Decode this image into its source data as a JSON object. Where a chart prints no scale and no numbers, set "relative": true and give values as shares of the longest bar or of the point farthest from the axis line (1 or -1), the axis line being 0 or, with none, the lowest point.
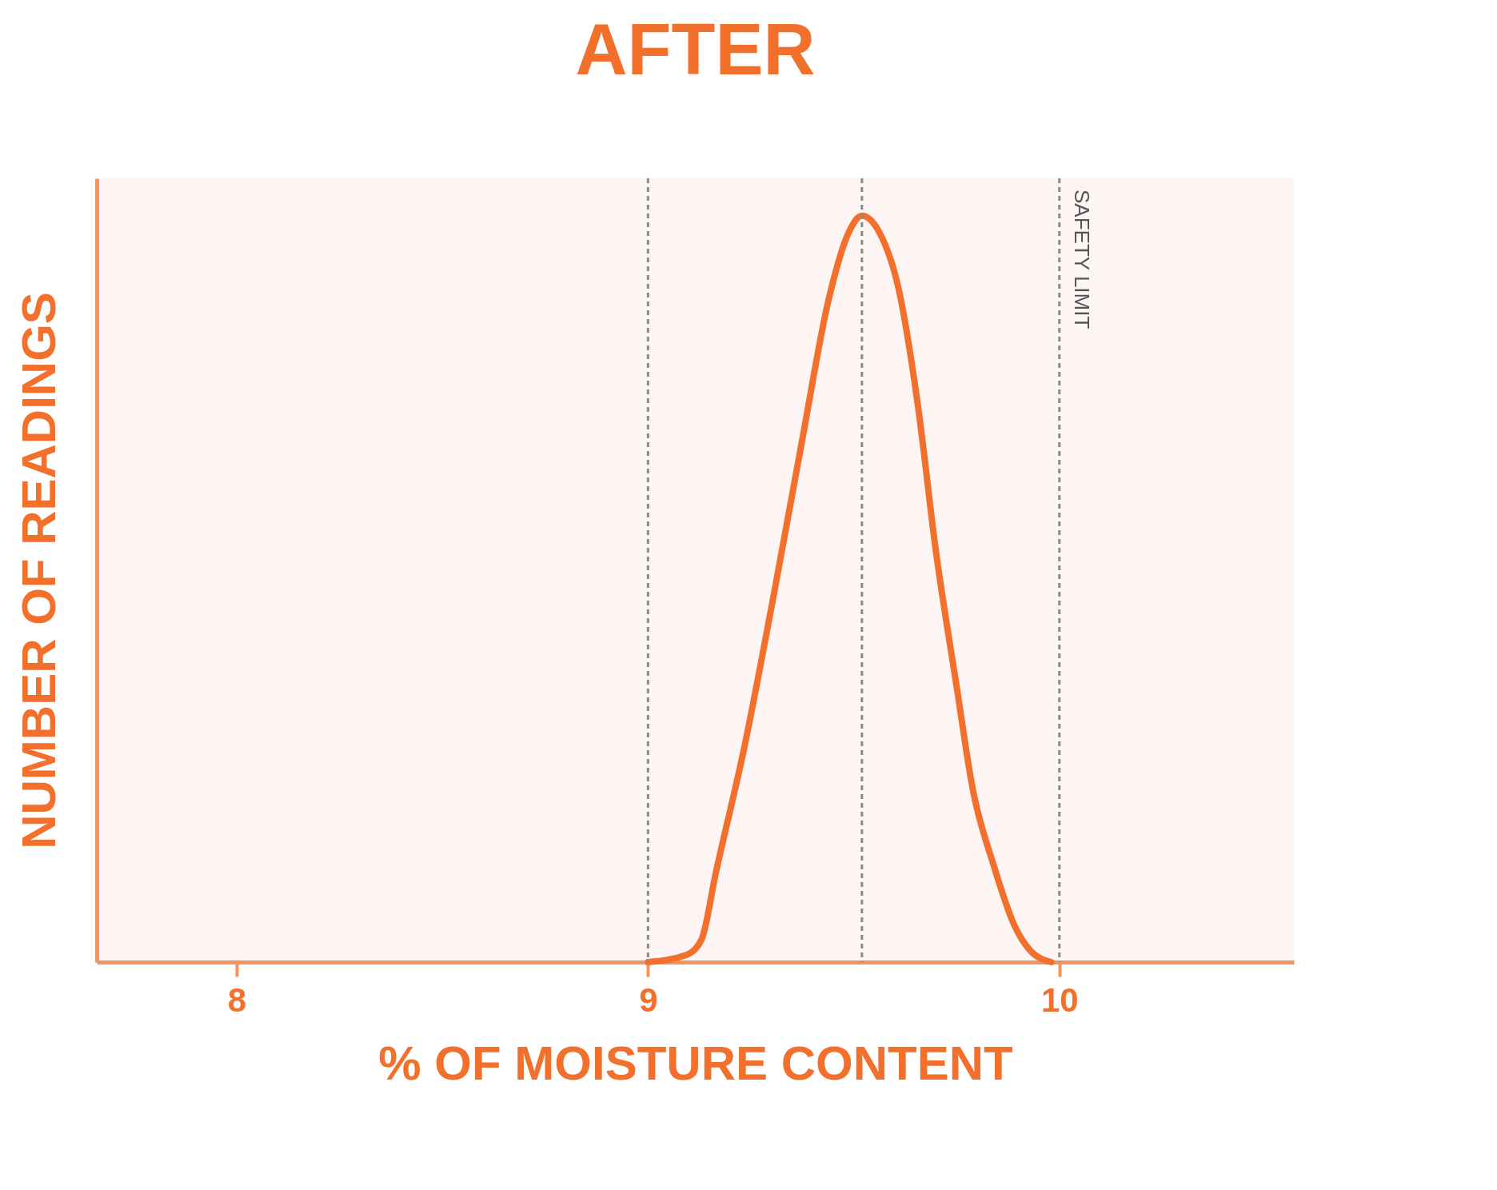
{
  "chart_data": {
    "type": "line",
    "title": "AFTER",
    "xlabel": "% OF MOISTURE CONTENT",
    "ylabel": "NUMBER OF READINGS",
    "relative": true,
    "xlim": [
      7.66,
      10.57
    ],
    "xticks": [
      8,
      9,
      10
    ],
    "grid": false,
    "marker": "none",
    "line_style": "solid",
    "series": [
      {
        "color": "#f36f2c",
        "x": [
          9.0,
          9.095,
          9.13,
          9.165,
          9.235,
          9.305,
          9.375,
          9.44,
          9.49,
          9.52,
          9.56,
          9.61,
          9.655,
          9.7,
          9.75,
          9.79,
          9.84,
          9.89,
          9.93,
          9.98
        ],
        "values": [
          0,
          0.01,
          0.03,
          0.12,
          0.29,
          0.49,
          0.7,
          0.89,
          0.98,
          1,
          0.98,
          0.9,
          0.75,
          0.55,
          0.37,
          0.23,
          0.13,
          0.05,
          0.015,
          0
        ]
      }
    ],
    "ref_lines": [
      {
        "axis": "x",
        "value": 9,
        "label": null,
        "color": "#8a8a8a",
        "line_style": "dashed"
      },
      {
        "axis": "x",
        "value": 9.52,
        "label": null,
        "color": "#8a8a8a",
        "line_style": "dashed"
      },
      {
        "axis": "x",
        "value": 10,
        "label": "SAFETY LIMIT",
        "color": "#8a8a8a",
        "line_style": "dashed"
      }
    ]
  }
}
